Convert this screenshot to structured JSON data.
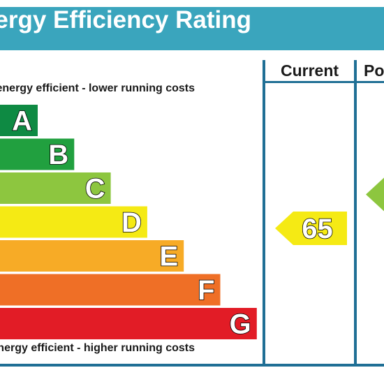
{
  "header": {
    "title": "Energy Efficiency Rating"
  },
  "columns": {
    "current": "Current",
    "potential": "Potential"
  },
  "notes": {
    "top": "Very energy efficient - lower running costs",
    "bottom": "Not energy efficient - higher running costs"
  },
  "colors": {
    "A": "#008054",
    "B": "#19b459",
    "C": "#8dce46",
    "D": "#ffd500",
    "E": "#fcaa65",
    "F": "#ef8023",
    "G": "#e9153b",
    "title_bar": "#3aa5bd",
    "frame": "#1f6f95"
  },
  "chart_data": {
    "type": "bar",
    "title": "Energy Efficiency Rating",
    "categories": [
      "A",
      "B",
      "C",
      "D",
      "E",
      "F",
      "G"
    ],
    "bands": [
      {
        "letter": "A",
        "color": "#0e8a43"
      },
      {
        "letter": "B",
        "color": "#21a03f"
      },
      {
        "letter": "C",
        "color": "#8dc63f"
      },
      {
        "letter": "D",
        "color": "#f5ea14"
      },
      {
        "letter": "E",
        "color": "#f7ab26"
      },
      {
        "letter": "F",
        "color": "#ef6f26"
      },
      {
        "letter": "G",
        "color": "#e21c26"
      }
    ],
    "current": {
      "value": 65,
      "band": "D",
      "color": "#f5ea14"
    },
    "potential": {
      "band": "C",
      "color": "#8dc63f"
    }
  }
}
